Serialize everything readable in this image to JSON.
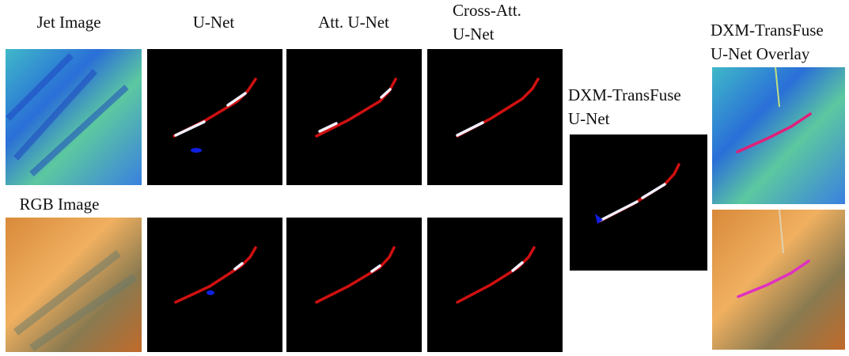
{
  "labels": {
    "jet_image": "Jet Image",
    "rgb_image": "RGB Image",
    "unet": "U-Net",
    "att_unet": "Att. U-Net",
    "cross_att_unet": [
      "Cross-Att.",
      "U-Net"
    ],
    "dxm_transfuse_unet": [
      "DXM-TransFuse",
      "U-Net"
    ],
    "dxm_overlay": [
      "DXM-TransFuse",
      "U-Net Overlay"
    ]
  }
}
